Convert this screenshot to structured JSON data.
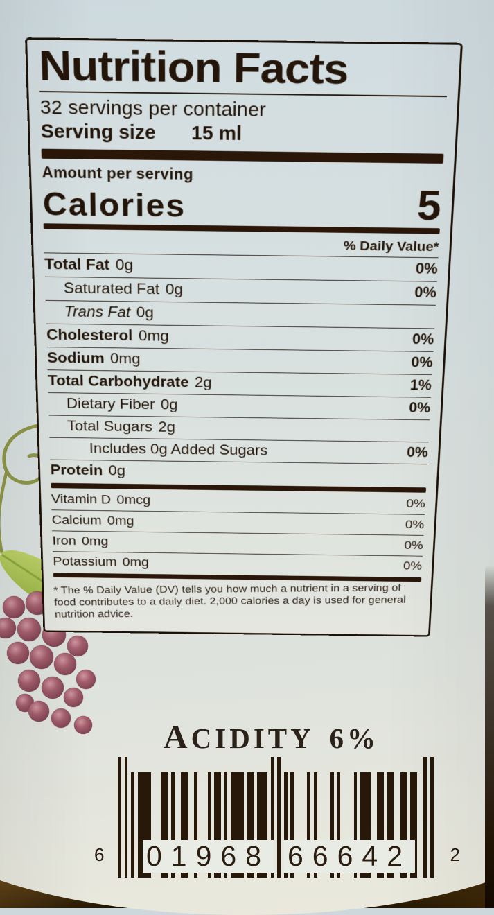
{
  "nutrition": {
    "title": "Nutrition Facts",
    "servings_line": "32 servings per container",
    "serving_size_label": "Serving size",
    "serving_size_value": "15 ml",
    "amount_per_serving": "Amount per serving",
    "calories_label": "Calories",
    "calories_value": "5",
    "daily_value_header": "% Daily Value*",
    "rows": [
      {
        "name": "Total Fat",
        "amount": "0g",
        "dv": "0%",
        "style": "bold",
        "indent": 0
      },
      {
        "name": "Saturated Fat",
        "amount": "0g",
        "dv": "0%",
        "style": "regular",
        "indent": 1
      },
      {
        "name": "Trans Fat",
        "amount": "0g",
        "dv": "",
        "style": "italic",
        "indent": 1
      },
      {
        "name": "Cholesterol",
        "amount": "0mg",
        "dv": "0%",
        "style": "bold",
        "indent": 0
      },
      {
        "name": "Sodium",
        "amount": "0mg",
        "dv": "0%",
        "style": "bold",
        "indent": 0
      },
      {
        "name": "Total Carbohydrate",
        "amount": "2g",
        "dv": "1%",
        "style": "bold",
        "indent": 0
      },
      {
        "name": "Dietary Fiber",
        "amount": "0g",
        "dv": "0%",
        "style": "regular",
        "indent": 1
      },
      {
        "name": "Total Sugars",
        "amount": "2g",
        "dv": "",
        "style": "regular",
        "indent": 1
      },
      {
        "name": "Includes 0g Added Sugars",
        "amount": "",
        "dv": "0%",
        "style": "regular",
        "indent": 2
      },
      {
        "name": "Protein",
        "amount": "0g",
        "dv": "",
        "style": "bold",
        "indent": 0
      }
    ],
    "micronutrients": [
      {
        "name": "Vitamin D",
        "amount": "0mcg",
        "dv": "0%"
      },
      {
        "name": "Calcium",
        "amount": "0mg",
        "dv": "0%"
      },
      {
        "name": "Iron",
        "amount": "0mg",
        "dv": "0%"
      },
      {
        "name": "Potassium",
        "amount": "0mg",
        "dv": "0%"
      }
    ],
    "footnote": "* The % Daily Value (DV) tells you how much a nutrient in a serving of food contributes to a daily diet. 2,000 calories a day is used for general nutrition advice."
  },
  "acidity_text": "ACIDITY 6%",
  "barcode": {
    "left_digit": "6",
    "group1": "01968",
    "group2": "66642",
    "right_digit": "2"
  },
  "artwork": {
    "name": "grape-vine-illustration",
    "grape_color": "#a35e6c",
    "leaf_color": "#a6c054",
    "tendril_color": "#8e9748"
  },
  "colors": {
    "label_background": "#d9e1e0",
    "ink": "#231509",
    "bottle_glass": "#6e4e1e"
  }
}
